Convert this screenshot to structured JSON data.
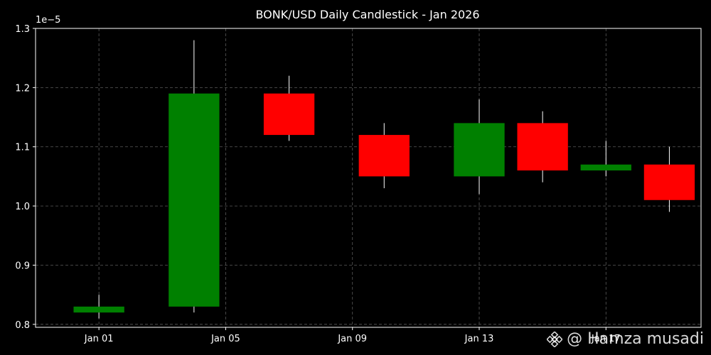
{
  "chart_data": {
    "type": "candlestick",
    "title": "BONK/USD Daily Candlestick - Jan 2026",
    "xlabel": "",
    "ylabel": "",
    "y_offset_label": "1e−5",
    "y_scale_factor": 1e-05,
    "ylim": [
      0.795,
      1.3
    ],
    "xlim_dates": [
      "2025-12-30",
      "2026-01-20"
    ],
    "yticks": [
      0.8,
      0.9,
      1.0,
      1.1,
      1.2,
      1.3
    ],
    "ytick_labels": [
      "0.8",
      "0.9",
      "1.0",
      "1.1",
      "1.2",
      "1.3"
    ],
    "xticks": [
      "2026-01-01",
      "2026-01-05",
      "2026-01-09",
      "2026-01-13",
      "2026-01-17"
    ],
    "xtick_labels": [
      "Jan 01",
      "Jan 05",
      "Jan 09",
      "Jan 13",
      "Jan 17"
    ],
    "grid": true,
    "up_color": "#008000",
    "down_color": "#ff0000",
    "wick_color": "#ffffff",
    "candles": [
      {
        "date": "2026-01-01",
        "open": 0.82,
        "high": 0.85,
        "low": 0.81,
        "close": 0.83
      },
      {
        "date": "2026-01-04",
        "open": 0.83,
        "high": 1.28,
        "low": 0.82,
        "close": 1.19
      },
      {
        "date": "2026-01-07",
        "open": 1.19,
        "high": 1.22,
        "low": 1.11,
        "close": 1.12
      },
      {
        "date": "2026-01-10",
        "open": 1.12,
        "high": 1.14,
        "low": 1.03,
        "close": 1.05
      },
      {
        "date": "2026-01-13",
        "open": 1.05,
        "high": 1.18,
        "low": 1.02,
        "close": 1.14
      },
      {
        "date": "2026-01-15",
        "open": 1.14,
        "high": 1.16,
        "low": 1.04,
        "close": 1.06
      },
      {
        "date": "2026-01-17",
        "open": 1.06,
        "high": 1.11,
        "low": 1.05,
        "close": 1.07
      },
      {
        "date": "2026-01-19",
        "open": 1.07,
        "high": 1.1,
        "low": 0.99,
        "close": 1.01
      }
    ]
  },
  "watermark": {
    "text": "@ Hamza musadi",
    "icon": "binance-logo-icon"
  }
}
